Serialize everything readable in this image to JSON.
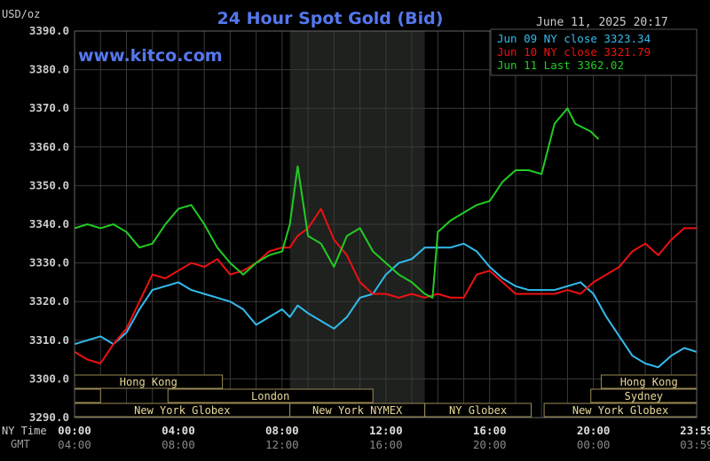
{
  "header": {
    "title": "24 Hour Spot Gold (Bid)",
    "unit": "USD/oz",
    "timestamp": "June 11, 2025 20:17",
    "watermark": "www.kitco.com"
  },
  "legend": [
    {
      "label": "Jun 09 NY close 3323.34",
      "color": "#33bbee"
    },
    {
      "label": "Jun 10 NY close 3321.79",
      "color": "#ee1111"
    },
    {
      "label": "Jun 11 Last 3362.02",
      "color": "#22cc22"
    }
  ],
  "axis_rows": {
    "ny_label": "NY Time",
    "gmt_label": "GMT",
    "ny_ticks": [
      "00:00",
      "04:00",
      "08:00",
      "12:00",
      "16:00",
      "20:00",
      "23:59"
    ],
    "gmt_ticks": [
      "04:00",
      "08:00",
      "12:00",
      "16:00",
      "20:00",
      "00:00",
      "03:59"
    ]
  },
  "sessions": [
    {
      "label": "Hong Kong",
      "row": 1,
      "start": 0,
      "end": 5.7
    },
    {
      "label": "Hong Kong",
      "row": 1,
      "start": 20.3,
      "end": 23.98
    },
    {
      "label": "",
      "row": 2,
      "start": 0,
      "end": 1.0
    },
    {
      "label": "London",
      "row": 2,
      "start": 3.6,
      "end": 11.5
    },
    {
      "label": "Sydney",
      "row": 2,
      "start": 19.9,
      "end": 23.98
    },
    {
      "label": "New York Globex",
      "row": 3,
      "start": 0,
      "end": 8.3
    },
    {
      "label": "New York NYMEX",
      "row": 3,
      "start": 8.3,
      "end": 13.5
    },
    {
      "label": "NY Globex",
      "row": 3,
      "start": 13.5,
      "end": 17.6
    },
    {
      "label": "New York Globex",
      "row": 3,
      "start": 18.1,
      "end": 23.98
    }
  ],
  "chart_data": {
    "type": "line",
    "title": "24 Hour Spot Gold (Bid)",
    "ylabel": "USD/oz",
    "xlabel": "NY Time",
    "xlim": [
      0,
      23.98
    ],
    "ylim": [
      3290,
      3390
    ],
    "yticks": [
      "3390.0",
      "3380.0",
      "3370.0",
      "3360.0",
      "3350.0",
      "3340.0",
      "3330.0",
      "3320.0",
      "3310.0",
      "3300.0",
      "3290.0"
    ],
    "shaded_region": [
      8.3,
      13.5
    ],
    "grid": true,
    "legend_position": "top-right",
    "series": [
      {
        "name": "Jun 09 NY close 3323.34",
        "color": "#33bbee",
        "x": [
          0,
          0.5,
          1.0,
          1.5,
          2.0,
          2.5,
          3.0,
          3.5,
          4.0,
          4.5,
          5.0,
          5.5,
          6.0,
          6.5,
          7.0,
          7.5,
          8.0,
          8.3,
          8.6,
          9.0,
          9.5,
          10.0,
          10.5,
          11.0,
          11.5,
          12.0,
          12.5,
          13.0,
          13.5,
          14.0,
          14.5,
          15.0,
          15.5,
          16.0,
          16.5,
          17.0,
          17.5,
          18.0,
          18.5,
          19.0,
          19.5,
          20.0,
          20.5,
          21.0,
          21.5,
          22.0,
          22.5,
          23.0,
          23.5,
          23.98
        ],
        "y": [
          3309,
          3310,
          3311,
          3309,
          3312,
          3318,
          3323,
          3324,
          3325,
          3323,
          3322,
          3321,
          3320,
          3318,
          3314,
          3316,
          3318,
          3316,
          3319,
          3317,
          3315,
          3313,
          3316,
          3321,
          3322,
          3327,
          3330,
          3331,
          3334,
          3334,
          3334,
          3335,
          3333,
          3329,
          3326,
          3324,
          3323,
          3323,
          3323,
          3324,
          3325,
          3322,
          3316,
          3311,
          3306,
          3304,
          3303,
          3306,
          3308,
          3307
        ]
      },
      {
        "name": "Jun 10 NY close 3321.79",
        "color": "#ee1111",
        "x": [
          0,
          0.5,
          1.0,
          1.5,
          2.0,
          2.5,
          3.0,
          3.5,
          4.0,
          4.5,
          5.0,
          5.5,
          6.0,
          6.5,
          7.0,
          7.5,
          8.0,
          8.3,
          8.6,
          9.0,
          9.5,
          10.0,
          10.5,
          11.0,
          11.5,
          12.0,
          12.5,
          13.0,
          13.5,
          14.0,
          14.5,
          15.0,
          15.5,
          16.0,
          16.5,
          17.0,
          17.5,
          18.0,
          18.5,
          19.0,
          19.5,
          20.0,
          20.5,
          21.0,
          21.5,
          22.0,
          22.5,
          23.0,
          23.5,
          23.98
        ],
        "y": [
          3307,
          3305,
          3304,
          3309,
          3313,
          3320,
          3327,
          3326,
          3328,
          3330,
          3329,
          3331,
          3327,
          3328,
          3330,
          3333,
          3334,
          3334,
          3337,
          3339,
          3344,
          3336,
          3332,
          3325,
          3322,
          3322,
          3321,
          3322,
          3321,
          3322,
          3321,
          3321,
          3327,
          3328,
          3325,
          3322,
          3322,
          3322,
          3322,
          3323,
          3322,
          3325,
          3327,
          3329,
          3333,
          3335,
          3332,
          3336,
          3339,
          3339
        ]
      },
      {
        "name": "Jun 11 Last 3362.02",
        "color": "#22cc22",
        "x": [
          0,
          0.5,
          1.0,
          1.5,
          2.0,
          2.5,
          3.0,
          3.5,
          4.0,
          4.5,
          5.0,
          5.5,
          6.0,
          6.5,
          7.0,
          7.5,
          8.0,
          8.3,
          8.6,
          9.0,
          9.5,
          10.0,
          10.5,
          11.0,
          11.5,
          12.0,
          12.5,
          13.0,
          13.5,
          13.8,
          14.0,
          14.5,
          15.0,
          15.5,
          16.0,
          16.5,
          17.0,
          17.5,
          18.0,
          18.5,
          19.0,
          19.3,
          19.6,
          19.9,
          20.2
        ],
        "y": [
          3339,
          3340,
          3339,
          3340,
          3338,
          3334,
          3335,
          3340,
          3344,
          3345,
          3340,
          3334,
          3330,
          3327,
          3330,
          3332,
          3333,
          3340,
          3355,
          3337,
          3335,
          3329,
          3337,
          3339,
          3333,
          3330,
          3327,
          3325,
          3322,
          3321,
          3338,
          3341,
          3343,
          3345,
          3346,
          3351,
          3354,
          3354,
          3353,
          3366,
          3370,
          3366,
          3365,
          3364,
          3362
        ]
      }
    ]
  }
}
